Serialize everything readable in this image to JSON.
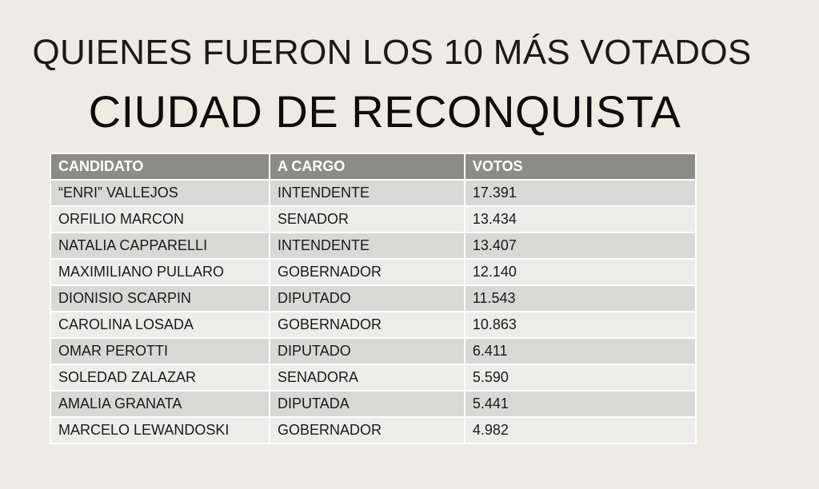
{
  "title": {
    "line1": "QUIENES FUERON LOS 10 MÁS VOTADOS",
    "line2": "CIUDAD DE RECONQUISTA"
  },
  "table": {
    "headers": [
      "CANDIDATO",
      "A CARGO",
      "VOTOS"
    ],
    "rows": [
      [
        "“ENRI” VALLEJOS",
        "INTENDENTE",
        "17.391"
      ],
      [
        "ORFILIO MARCON",
        "SENADOR",
        "13.434"
      ],
      [
        "NATALIA CAPPARELLI",
        "INTENDENTE",
        "13.407"
      ],
      [
        "MAXIMILIANO PULLARO",
        "GOBERNADOR",
        "12.140"
      ],
      [
        "DIONISIO SCARPIN",
        "DIPUTADO",
        "11.543"
      ],
      [
        "CAROLINA LOSADA",
        "GOBERNADOR",
        "10.863"
      ],
      [
        "OMAR PEROTTI",
        "DIPUTADO",
        "6.411"
      ],
      [
        "SOLEDAD ZALAZAR",
        "SENADORA",
        "5.590"
      ],
      [
        "AMALIA GRANATA",
        "DIPUTADA",
        "5.441"
      ],
      [
        "MARCELO LEWANDOSKI",
        "GOBERNADOR",
        "4.982"
      ]
    ]
  },
  "colors": {
    "background": "#eeebe4",
    "header_fill": "#8c8c86",
    "row_odd": "#d8d8d6",
    "row_even": "#ececea"
  }
}
